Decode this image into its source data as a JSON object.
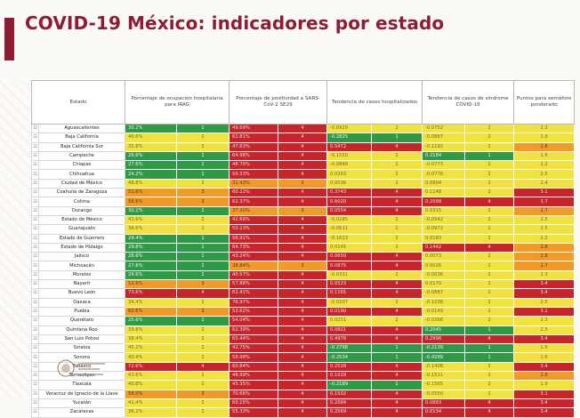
{
  "title": "COVID-19 México: indicadores por estado",
  "headers": {
    "state": "Estado",
    "occupancy": "Porcentaje de ocupación hospitalaria para IRAG",
    "positivity": "Porcentaje de positividad a SARS-CoV-2 SE29",
    "hosp_trend": "Tendencia de casos hospitalizados",
    "covid_trend": "Tendencia de casos de síndrome COVID-19",
    "points": "Puntos para semáforo ponderado"
  },
  "colors": {
    "green": "#2e9a47",
    "yellow": "#f0e340",
    "orange": "#f09a2a",
    "red": "#c8242b",
    "accent": "#8f1c33"
  },
  "rows": [
    {
      "state": "Aguascalientes",
      "occ": "30.2%",
      "occ_c": "g",
      "occ_p": "1",
      "pos": "49.69%",
      "pos_c": "r",
      "pos_p": "4",
      "ht": "-0.0929",
      "ht_c": "y",
      "ht_p": "2",
      "ct": "-0.0752",
      "ct_c": "y",
      "ct_p": "2",
      "pts": "2.2",
      "pts_c": "y"
    },
    {
      "state": "Baja California",
      "occ": "46.6%",
      "occ_c": "y",
      "occ_p": "2",
      "pos": "62.81%",
      "pos_c": "r",
      "pos_p": "4",
      "ht": "-0.2825",
      "ht_c": "g",
      "ht_p": "1",
      "ct": "-0.0867",
      "ct_c": "y",
      "ct_p": "2",
      "pts": "1.9",
      "pts_c": "y"
    },
    {
      "state": "Baja California Sur",
      "occ": "35.8%",
      "occ_c": "y",
      "occ_p": "2",
      "pos": "47.63%",
      "pos_c": "r",
      "pos_p": "4",
      "ht": "0.5472",
      "ht_c": "r",
      "ht_p": "4",
      "ct": "-0.1192",
      "ct_c": "y",
      "ct_p": "2",
      "pts": "2.8",
      "pts_c": "o"
    },
    {
      "state": "Campeche",
      "occ": "26.6%",
      "occ_c": "g",
      "occ_p": "1",
      "pos": "64.96%",
      "pos_c": "r",
      "pos_p": "4",
      "ht": "-0.1550",
      "ht_c": "y",
      "ht_p": "2",
      "ct": "0.2184",
      "ct_c": "g",
      "ct_p": "1",
      "pts": "1.6",
      "pts_c": "y"
    },
    {
      "state": "Chiapas",
      "occ": "27.6%",
      "occ_c": "g",
      "occ_p": "1",
      "pos": "48.70%",
      "pos_c": "r",
      "pos_p": "4",
      "ht": "-0.0848",
      "ht_c": "y",
      "ht_p": "2",
      "ct": "-0.0773",
      "ct_c": "y",
      "ct_p": "2",
      "pts": "2.2",
      "pts_c": "y"
    },
    {
      "state": "Chihuahua",
      "occ": "24.2%",
      "occ_c": "g",
      "occ_p": "1",
      "pos": "50.33%",
      "pos_c": "r",
      "pos_p": "4",
      "ht": "0.0263",
      "ht_c": "y",
      "ht_p": "2",
      "ct": "-0.0776",
      "ct_c": "y",
      "ct_p": "2",
      "pts": "2.5",
      "pts_c": "y"
    },
    {
      "state": "Ciudad de México",
      "occ": "48.8%",
      "occ_c": "y",
      "occ_p": "2",
      "pos": "31.43%",
      "pos_c": "o",
      "pos_p": "3",
      "ht": "0.0036",
      "ht_c": "y",
      "ht_p": "2",
      "ct": "0.0804",
      "ct_c": "y",
      "ct_p": "2",
      "pts": "2.4",
      "pts_c": "y"
    },
    {
      "state": "Coahuila de Zaragoza",
      "occ": "51.6%",
      "occ_c": "o",
      "occ_p": "3",
      "pos": "60.22%",
      "pos_c": "r",
      "pos_p": "4",
      "ht": "0.3743",
      "ht_c": "r",
      "ht_p": "4",
      "ct": "0.1148",
      "ct_c": "y",
      "ct_p": "2",
      "pts": "3.1",
      "pts_c": "r"
    },
    {
      "state": "Colima",
      "occ": "58.6%",
      "occ_c": "o",
      "occ_p": "3",
      "pos": "62.37%",
      "pos_c": "r",
      "pos_p": "4",
      "ht": "0.6020",
      "ht_c": "r",
      "ht_p": "4",
      "ct": "0.2098",
      "ct_c": "r",
      "ct_p": "4",
      "pts": "3.7",
      "pts_c": "r"
    },
    {
      "state": "Durango",
      "occ": "30.2%",
      "occ_c": "g",
      "occ_p": "1",
      "pos": "37.30%",
      "pos_c": "o",
      "pos_p": "3",
      "ht": "0.0554",
      "ht_c": "r",
      "ht_p": "4",
      "ct": "0.0315",
      "ct_c": "y",
      "ct_p": "2",
      "pts": "2.7",
      "pts_c": "o"
    },
    {
      "state": "Estado de México",
      "occ": "43.6%",
      "occ_c": "y",
      "occ_p": "2",
      "pos": "42.66%",
      "pos_c": "r",
      "pos_p": "4",
      "ht": "-0.0185",
      "ht_c": "y",
      "ht_p": "2",
      "ct": "-0.0542",
      "ct_c": "y",
      "ct_p": "2",
      "pts": "2.5",
      "pts_c": "y"
    },
    {
      "state": "Guanajuato",
      "occ": "36.6%",
      "occ_c": "y",
      "occ_p": "2",
      "pos": "50.13%",
      "pos_c": "r",
      "pos_p": "4",
      "ht": "-0.0511",
      "ht_c": "y",
      "ht_p": "2",
      "ct": "-0.0972",
      "ct_c": "y",
      "ct_p": "2",
      "pts": "2.5",
      "pts_c": "y"
    },
    {
      "state": "Estado de Guerrero",
      "occ": "29.4%",
      "occ_c": "g",
      "occ_p": "1",
      "pos": "56.91%",
      "pos_c": "r",
      "pos_p": "4",
      "ht": "-0.1613",
      "ht_c": "y",
      "ht_p": "2",
      "ct": "0.0183",
      "ct_c": "y",
      "ct_p": "2",
      "pts": "2.2",
      "pts_c": "y"
    },
    {
      "state": "Estado de Hidalgo",
      "occ": "29.8%",
      "occ_c": "g",
      "occ_p": "1",
      "pos": "64.73%",
      "pos_c": "r",
      "pos_p": "4",
      "ht": "0.0145",
      "ht_c": "y",
      "ht_p": "2",
      "ct": "0.1442",
      "ct_c": "r",
      "ct_p": "4",
      "pts": "2.8",
      "pts_c": "o"
    },
    {
      "state": "Jalisco",
      "occ": "28.6%",
      "occ_c": "g",
      "occ_p": "1",
      "pos": "43.24%",
      "pos_c": "r",
      "pos_p": "4",
      "ht": "0.0650",
      "ht_c": "r",
      "ht_p": "4",
      "ct": "0.0073",
      "ct_c": "y",
      "ct_p": "2",
      "pts": "2.8",
      "pts_c": "o"
    },
    {
      "state": "Michoacán",
      "occ": "27.8%",
      "occ_c": "g",
      "occ_p": "1",
      "pos": "38.84%",
      "pos_c": "o",
      "pos_p": "3",
      "ht": "0.0875",
      "ht_c": "r",
      "ht_p": "4",
      "ct": "0.0026",
      "ct_c": "y",
      "ct_p": "2",
      "pts": "2.7",
      "pts_c": "o"
    },
    {
      "state": "Morelos",
      "occ": "24.6%",
      "occ_c": "g",
      "occ_p": "1",
      "pos": "40.57%",
      "pos_c": "r",
      "pos_p": "4",
      "ht": "-0.0331",
      "ht_c": "y",
      "ht_p": "2",
      "ct": "-0.0036",
      "ct_c": "y",
      "ct_p": "2",
      "pts": "2.3",
      "pts_c": "y"
    },
    {
      "state": "Nayarit",
      "occ": "52.6%",
      "occ_c": "o",
      "occ_p": "3",
      "pos": "57.86%",
      "pos_c": "r",
      "pos_p": "4",
      "ht": "0.0523",
      "ht_c": "r",
      "ht_p": "4",
      "ct": "0.0170",
      "ct_c": "y",
      "ct_p": "2",
      "pts": "3.4",
      "pts_c": "r"
    },
    {
      "state": "Nuevo León",
      "occ": "73.6%",
      "occ_c": "r",
      "occ_p": "4",
      "pos": "61.41%",
      "pos_c": "r",
      "pos_p": "4",
      "ht": "0.1165",
      "ht_c": "r",
      "ht_p": "4",
      "ct": "-0.0887",
      "ct_c": "y",
      "ct_p": "2",
      "pts": "3.4",
      "pts_c": "r"
    },
    {
      "state": "Oaxaca",
      "occ": "34.4%",
      "occ_c": "y",
      "occ_p": "2",
      "pos": "76.97%",
      "pos_c": "r",
      "pos_p": "4",
      "ht": "-0.0207",
      "ht_c": "y",
      "ht_p": "2",
      "ct": "-0.1238",
      "ct_c": "y",
      "ct_p": "2",
      "pts": "2.5",
      "pts_c": "y"
    },
    {
      "state": "Puebla",
      "occ": "60.6%",
      "occ_c": "o",
      "occ_p": "3",
      "pos": "53.62%",
      "pos_c": "r",
      "pos_p": "4",
      "ht": "0.0190",
      "ht_c": "r",
      "ht_p": "4",
      "ct": "-0.0149",
      "ct_c": "y",
      "ct_p": "2",
      "pts": "3.1",
      "pts_c": "r"
    },
    {
      "state": "Querétaro",
      "occ": "25.6%",
      "occ_c": "g",
      "occ_p": "1",
      "pos": "54.04%",
      "pos_c": "r",
      "pos_p": "4",
      "ht": "0.0251",
      "ht_c": "y",
      "ht_p": "2",
      "ct": "-0.0366",
      "ct_c": "y",
      "ct_p": "2",
      "pts": "2.3",
      "pts_c": "y"
    },
    {
      "state": "Quintana Roo",
      "occ": "39.8%",
      "occ_c": "y",
      "occ_p": "2",
      "pos": "62.39%",
      "pos_c": "r",
      "pos_p": "4",
      "ht": "0.0821",
      "ht_c": "r",
      "ht_p": "4",
      "ct": "0.2045",
      "ct_c": "g",
      "ct_p": "1",
      "pts": "2.5",
      "pts_c": "y"
    },
    {
      "state": "San Luis Potosí",
      "occ": "38.4%",
      "occ_c": "y",
      "occ_p": "2",
      "pos": "65.44%",
      "pos_c": "r",
      "pos_p": "4",
      "ht": "0.4976",
      "ht_c": "r",
      "ht_p": "4",
      "ct": "0.2996",
      "ct_c": "r",
      "ct_p": "4",
      "pts": "3.4",
      "pts_c": "r"
    },
    {
      "state": "Sinaloa",
      "occ": "45.2%",
      "occ_c": "y",
      "occ_p": "2",
      "pos": "42.75%",
      "pos_c": "r",
      "pos_p": "4",
      "ht": "-0.2798",
      "ht_c": "g",
      "ht_p": "1",
      "ct": "-0.2139",
      "ct_c": "g",
      "ct_p": "1",
      "pts": "1.6",
      "pts_c": "y"
    },
    {
      "state": "Sonora",
      "occ": "40.4%",
      "occ_c": "y",
      "occ_p": "2",
      "pos": "58.98%",
      "pos_c": "r",
      "pos_p": "4",
      "ht": "-0.2534",
      "ht_c": "g",
      "ht_p": "1",
      "ct": "-0.4289",
      "ct_c": "g",
      "ct_p": "1",
      "pts": "1.6",
      "pts_c": "y"
    },
    {
      "state": "Tabasco",
      "occ": "72.6%",
      "occ_c": "r",
      "occ_p": "4",
      "pos": "60.84%",
      "pos_c": "r",
      "pos_p": "4",
      "ht": "0.2528",
      "ht_c": "r",
      "ht_p": "4",
      "ct": "-0.1408",
      "ct_c": "y",
      "ct_p": "2",
      "pts": "3.4",
      "pts_c": "r"
    },
    {
      "state": "Tamaulipas",
      "occ": "43.6%",
      "occ_c": "y",
      "occ_p": "2",
      "pos": "46.99%",
      "pos_c": "r",
      "pos_p": "4",
      "ht": "0.1029",
      "ht_c": "r",
      "ht_p": "4",
      "ct": "-0.1511",
      "ct_c": "y",
      "ct_p": "2",
      "pts": "2.8",
      "pts_c": "o"
    },
    {
      "state": "Tlaxcala",
      "occ": "40.8%",
      "occ_c": "y",
      "occ_p": "2",
      "pos": "45.35%",
      "pos_c": "r",
      "pos_p": "4",
      "ht": "-0.2189",
      "ht_c": "g",
      "ht_p": "1",
      "ct": "-0.1565",
      "ct_c": "y",
      "ct_p": "2",
      "pts": "1.9",
      "pts_c": "y"
    },
    {
      "state": "Veracruz de Ignacio de la Llave",
      "occ": "58.0%",
      "occ_c": "o",
      "occ_p": "3",
      "pos": "70.66%",
      "pos_c": "r",
      "pos_p": "4",
      "ht": "0.1502",
      "ht_c": "r",
      "ht_p": "4",
      "ct": "-0.0550",
      "ct_c": "y",
      "ct_p": "2",
      "pts": "3.1",
      "pts_c": "r"
    },
    {
      "state": "Yucatán",
      "occ": "41.4%",
      "occ_c": "y",
      "occ_p": "2",
      "pos": "60.15%",
      "pos_c": "r",
      "pos_p": "4",
      "ht": "0.2084",
      "ht_c": "r",
      "ht_p": "4",
      "ct": "0.0893",
      "ct_c": "r",
      "ct_p": "4",
      "pts": "3.4",
      "pts_c": "r"
    },
    {
      "state": "Zacatecas",
      "occ": "36.2%",
      "occ_c": "y",
      "occ_p": "2",
      "pos": "55.33%",
      "pos_c": "r",
      "pos_p": "4",
      "ht": "0.2569",
      "ht_c": "r",
      "ht_p": "4",
      "ct": "0.0134",
      "ct_c": "r",
      "ct_p": "4",
      "pts": "3.4",
      "pts_c": "r"
    }
  ]
}
